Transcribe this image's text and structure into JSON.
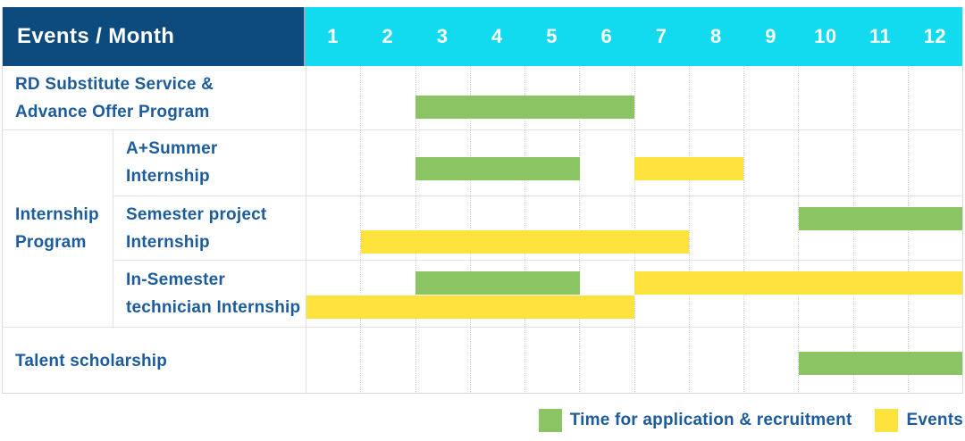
{
  "header": {
    "title": "Events / Month",
    "months": [
      "1",
      "2",
      "3",
      "4",
      "5",
      "6",
      "7",
      "8",
      "9",
      "10",
      "11",
      "12"
    ]
  },
  "colors": {
    "navy": "#0d4b7f",
    "cyan": "#12daef",
    "green": "#8bc463",
    "yellow": "#ffe33d",
    "label_text": "#1d5c9c"
  },
  "group": {
    "label_lines": [
      "Internship",
      "Program"
    ]
  },
  "rows": [
    {
      "label_lines": [
        "RD Substitute Service &",
        "Advance Offer Program"
      ],
      "bars": [
        {
          "color": "green",
          "start": 3,
          "end": 6,
          "top": 33
        }
      ]
    },
    {
      "label_lines": [
        "A+Summer",
        "Internship"
      ],
      "bars": [
        {
          "color": "green",
          "start": 3,
          "end": 5,
          "top": 30
        },
        {
          "color": "yellow",
          "start": 7,
          "end": 8,
          "top": 30
        }
      ]
    },
    {
      "label_lines": [
        "Semester project",
        "Internship"
      ],
      "bars": [
        {
          "color": "green",
          "start": 10,
          "end": 12,
          "top": 12
        },
        {
          "color": "yellow",
          "start": 2,
          "end": 7,
          "top": 38
        }
      ]
    },
    {
      "label_lines": [
        "In-Semester",
        "technician Internship"
      ],
      "bars": [
        {
          "color": "green",
          "start": 3,
          "end": 5,
          "top": 12
        },
        {
          "color": "yellow",
          "start": 7,
          "end": 12,
          "top": 12
        },
        {
          "color": "yellow",
          "start": 1,
          "end": 6,
          "top": 39
        }
      ]
    },
    {
      "label_lines": [
        "Talent scholarship"
      ],
      "bars": [
        {
          "color": "green",
          "start": 10,
          "end": 12,
          "top": 27
        }
      ]
    }
  ],
  "legend": [
    {
      "color": "green",
      "label": "Time for application & recruitment"
    },
    {
      "color": "yellow",
      "label": "Events"
    }
  ],
  "chart_data": {
    "type": "bar",
    "subtype": "gantt-schedule",
    "title": "Events / Month",
    "x_axis": {
      "label": "Month",
      "categories": [
        1,
        2,
        3,
        4,
        5,
        6,
        7,
        8,
        9,
        10,
        11,
        12
      ]
    },
    "legend_position": "bottom-right",
    "grid": true,
    "rows": [
      {
        "group": null,
        "label": "RD Substitute Service & Advance Offer Program",
        "segments": [
          {
            "series": "Time for application & recruitment",
            "start_month": 3,
            "end_month": 6
          }
        ]
      },
      {
        "group": "Internship Program",
        "label": "A+Summer Internship",
        "segments": [
          {
            "series": "Time for application & recruitment",
            "start_month": 3,
            "end_month": 5
          },
          {
            "series": "Events",
            "start_month": 7,
            "end_month": 8
          }
        ]
      },
      {
        "group": "Internship Program",
        "label": "Semester project Internship",
        "segments": [
          {
            "series": "Time for application & recruitment",
            "start_month": 10,
            "end_month": 12
          },
          {
            "series": "Events",
            "start_month": 2,
            "end_month": 7
          }
        ]
      },
      {
        "group": "Internship Program",
        "label": "In-Semester technician Internship",
        "segments": [
          {
            "series": "Time for application & recruitment",
            "start_month": 3,
            "end_month": 5
          },
          {
            "series": "Events",
            "start_month": 1,
            "end_month": 6
          },
          {
            "series": "Events",
            "start_month": 7,
            "end_month": 12
          }
        ]
      },
      {
        "group": null,
        "label": "Talent scholarship",
        "segments": [
          {
            "series": "Time for application & recruitment",
            "start_month": 10,
            "end_month": 12
          }
        ]
      }
    ],
    "series_colors": {
      "Time for application & recruitment": "#8bc463",
      "Events": "#ffe33d"
    }
  }
}
